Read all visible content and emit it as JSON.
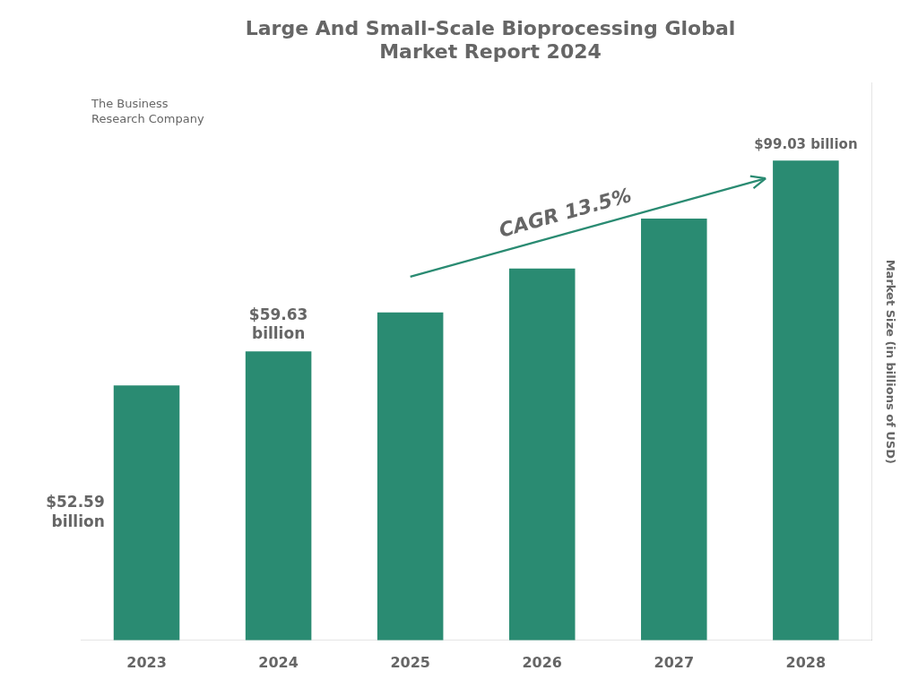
{
  "chart_data": {
    "type": "bar",
    "title": "Large And Small-Scale Bioprocessing Global\nMarket Report 2024",
    "categories": [
      "2023",
      "2024",
      "2025",
      "2026",
      "2027",
      "2028"
    ],
    "values": [
      52.59,
      59.63,
      67.66,
      76.73,
      87.05,
      99.03
    ],
    "color": "#2a8b72",
    "ylabel": "Market Size (in billions of USD)",
    "ylim": [
      0,
      115
    ],
    "grid": false,
    "tick_labels": "x",
    "annotations": [
      "$52.59\nbillion",
      "$59.63\nbillion",
      "$99.03 billion",
      "CAGR 13.5%",
      "The Business\nResearch Company"
    ]
  }
}
